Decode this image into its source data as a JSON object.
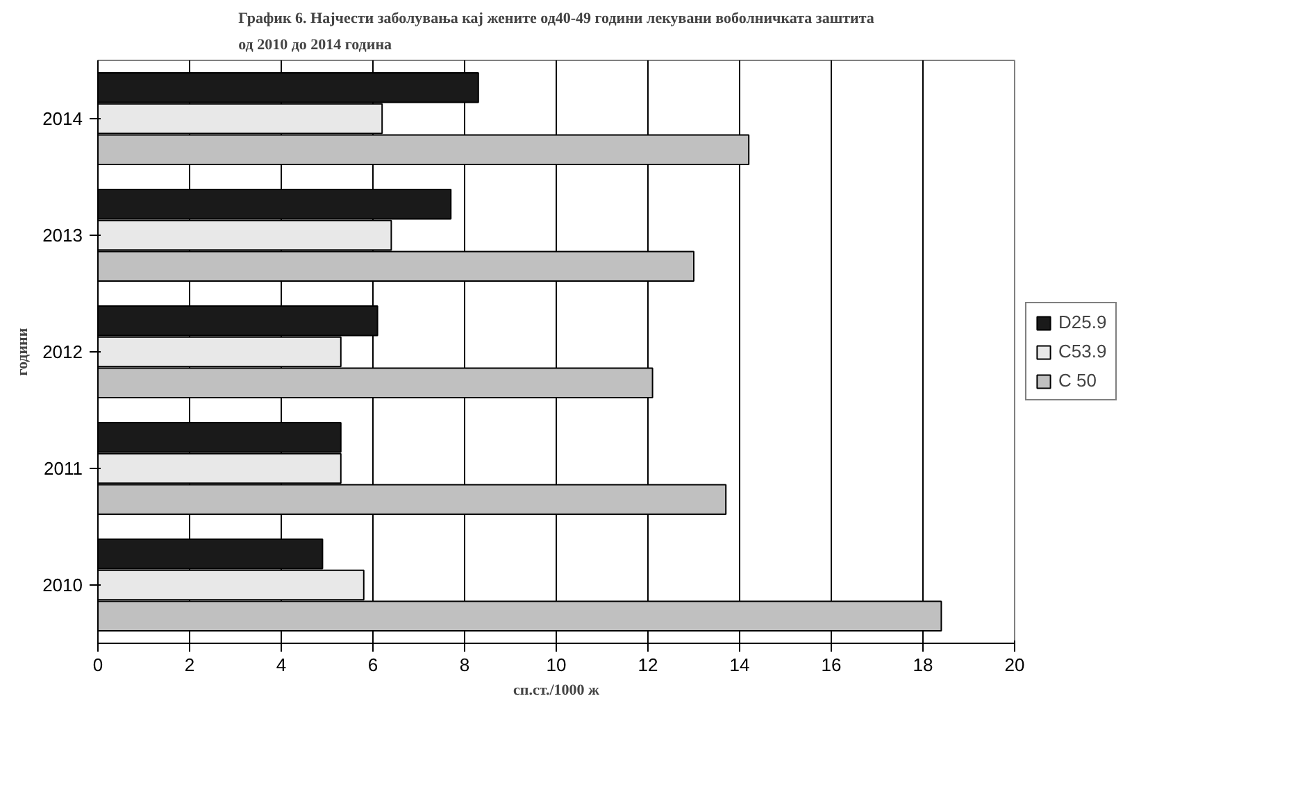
{
  "chart_data": {
    "type": "bar",
    "orientation": "horizontal",
    "title": "График 6. Најчести заболувања кај жените од40-49 години лекувани воболничката заштита\nод 2010 до 2014 година",
    "xlabel": "сп.ст./1000 ж",
    "ylabel": "години",
    "categories": [
      "2014",
      "2013",
      "2012",
      "2011",
      "2010"
    ],
    "series": [
      {
        "name": "D25.9",
        "color": "#1a1a1a",
        "values": [
          8.3,
          7.7,
          6.1,
          5.3,
          4.9
        ]
      },
      {
        "name": "C53.9",
        "color": "#e8e8e8",
        "values": [
          6.2,
          6.4,
          5.3,
          5.3,
          5.8
        ]
      },
      {
        "name": "C 50",
        "color": "#c0c0c0",
        "values": [
          14.2,
          13.0,
          12.1,
          13.7,
          18.4
        ]
      }
    ],
    "xlim": [
      0,
      20
    ],
    "xticks": [
      0,
      2,
      4,
      6,
      8,
      10,
      12,
      14,
      16,
      18,
      20
    ],
    "grid": "x",
    "legend": "right"
  }
}
